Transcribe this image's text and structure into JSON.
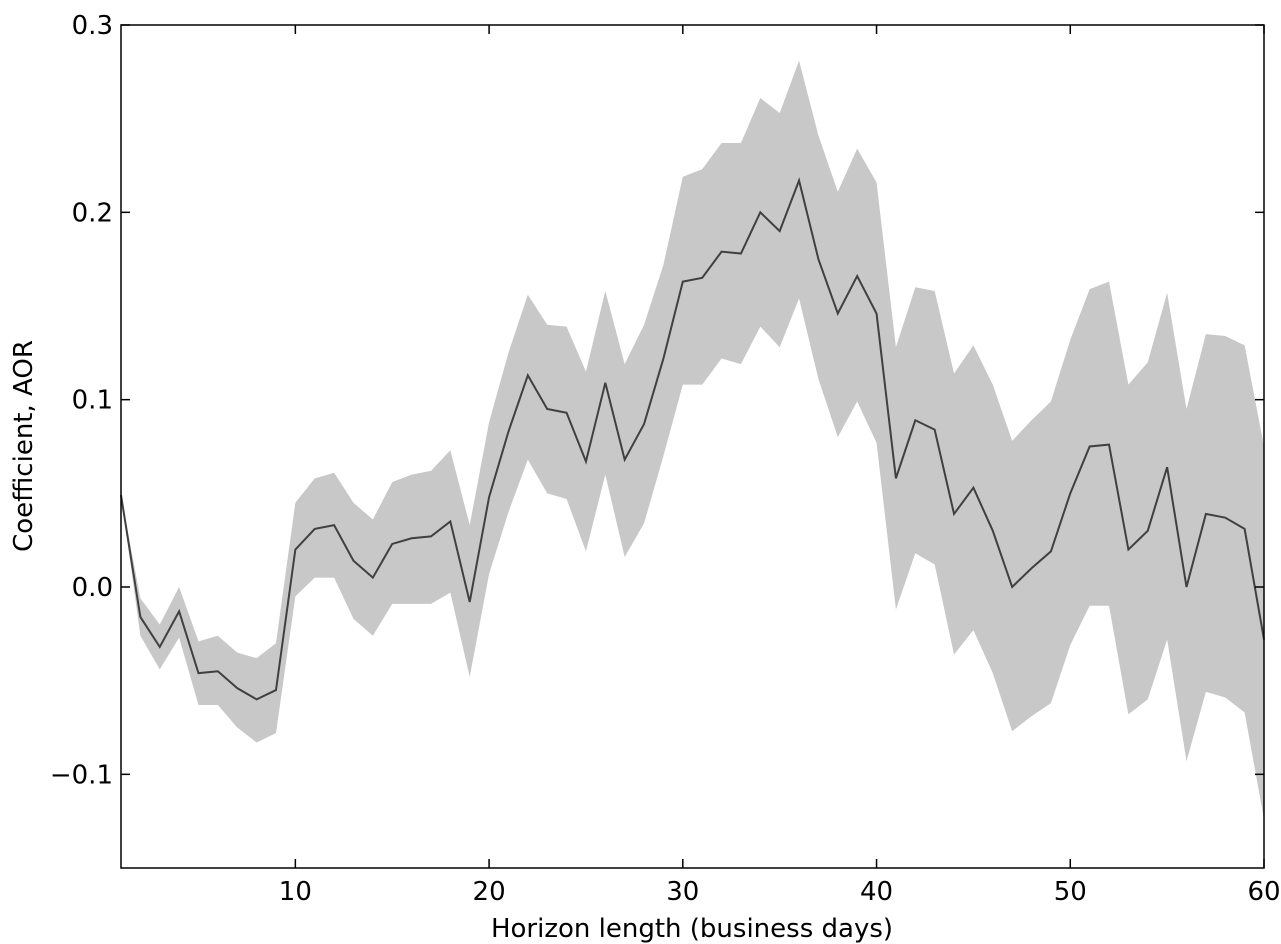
{
  "chart_data": {
    "type": "line_band",
    "xlabel": "Horizon length (business days)",
    "ylabel": "Coefficient, AOR",
    "x": [
      1,
      2,
      3,
      4,
      5,
      6,
      7,
      8,
      9,
      10,
      11,
      12,
      13,
      14,
      15,
      16,
      17,
      18,
      19,
      20,
      21,
      22,
      23,
      24,
      25,
      26,
      27,
      28,
      29,
      30,
      31,
      32,
      33,
      34,
      35,
      36,
      37,
      38,
      39,
      40,
      41,
      42,
      43,
      44,
      45,
      46,
      47,
      48,
      49,
      50,
      51,
      52,
      53,
      54,
      55,
      56,
      57,
      58,
      59,
      60
    ],
    "values": [
      0.049,
      -0.016,
      -0.032,
      -0.013,
      -0.046,
      -0.045,
      -0.054,
      -0.06,
      -0.055,
      0.02,
      0.031,
      0.033,
      0.014,
      0.005,
      0.023,
      0.026,
      0.027,
      0.035,
      -0.008,
      0.048,
      0.083,
      0.113,
      0.095,
      0.093,
      0.067,
      0.109,
      0.068,
      0.087,
      0.122,
      0.163,
      0.165,
      0.179,
      0.178,
      0.2,
      0.19,
      0.217,
      0.175,
      0.146,
      0.166,
      0.146,
      0.058,
      0.089,
      0.084,
      0.039,
      0.053,
      0.03,
      0.0,
      0.01,
      0.019,
      0.05,
      0.075,
      0.076,
      0.02,
      0.03,
      0.064,
      0.0,
      0.039,
      0.037,
      0.031,
      -0.028
    ],
    "upper": [
      0.049,
      -0.006,
      -0.02,
      0.0,
      -0.029,
      -0.026,
      -0.035,
      -0.038,
      -0.03,
      0.045,
      0.058,
      0.061,
      0.045,
      0.036,
      0.056,
      0.06,
      0.062,
      0.073,
      0.033,
      0.088,
      0.125,
      0.156,
      0.14,
      0.139,
      0.115,
      0.158,
      0.119,
      0.14,
      0.172,
      0.219,
      0.223,
      0.237,
      0.237,
      0.261,
      0.253,
      0.281,
      0.241,
      0.211,
      0.234,
      0.216,
      0.128,
      0.16,
      0.158,
      0.114,
      0.129,
      0.108,
      0.078,
      0.089,
      0.099,
      0.132,
      0.159,
      0.163,
      0.108,
      0.12,
      0.157,
      0.095,
      0.135,
      0.134,
      0.129,
      0.075
    ],
    "lower": [
      0.049,
      -0.026,
      -0.044,
      -0.027,
      -0.063,
      -0.063,
      -0.075,
      -0.083,
      -0.078,
      -0.005,
      0.005,
      0.005,
      -0.017,
      -0.026,
      -0.009,
      -0.009,
      -0.009,
      -0.003,
      -0.048,
      0.007,
      0.04,
      0.068,
      0.05,
      0.047,
      0.019,
      0.06,
      0.016,
      0.034,
      0.07,
      0.108,
      0.108,
      0.122,
      0.119,
      0.139,
      0.128,
      0.154,
      0.111,
      0.08,
      0.099,
      0.077,
      -0.012,
      0.018,
      0.012,
      -0.036,
      -0.023,
      -0.046,
      -0.077,
      -0.069,
      -0.062,
      -0.031,
      -0.01,
      -0.01,
      -0.068,
      -0.06,
      -0.028,
      -0.093,
      -0.056,
      -0.059,
      -0.067,
      -0.124
    ],
    "color": "#404040",
    "band_color": "#c8c8c8",
    "xlim": [
      1,
      60
    ],
    "xticks": [
      10,
      20,
      30,
      40,
      50,
      60
    ],
    "ylim": [
      -0.15,
      0.3
    ],
    "yticks": [
      {
        "value": -0.1,
        "label": "−0.1"
      },
      {
        "value": 0,
        "label": "0.0"
      },
      0.1,
      0.2,
      0.3
    ]
  }
}
